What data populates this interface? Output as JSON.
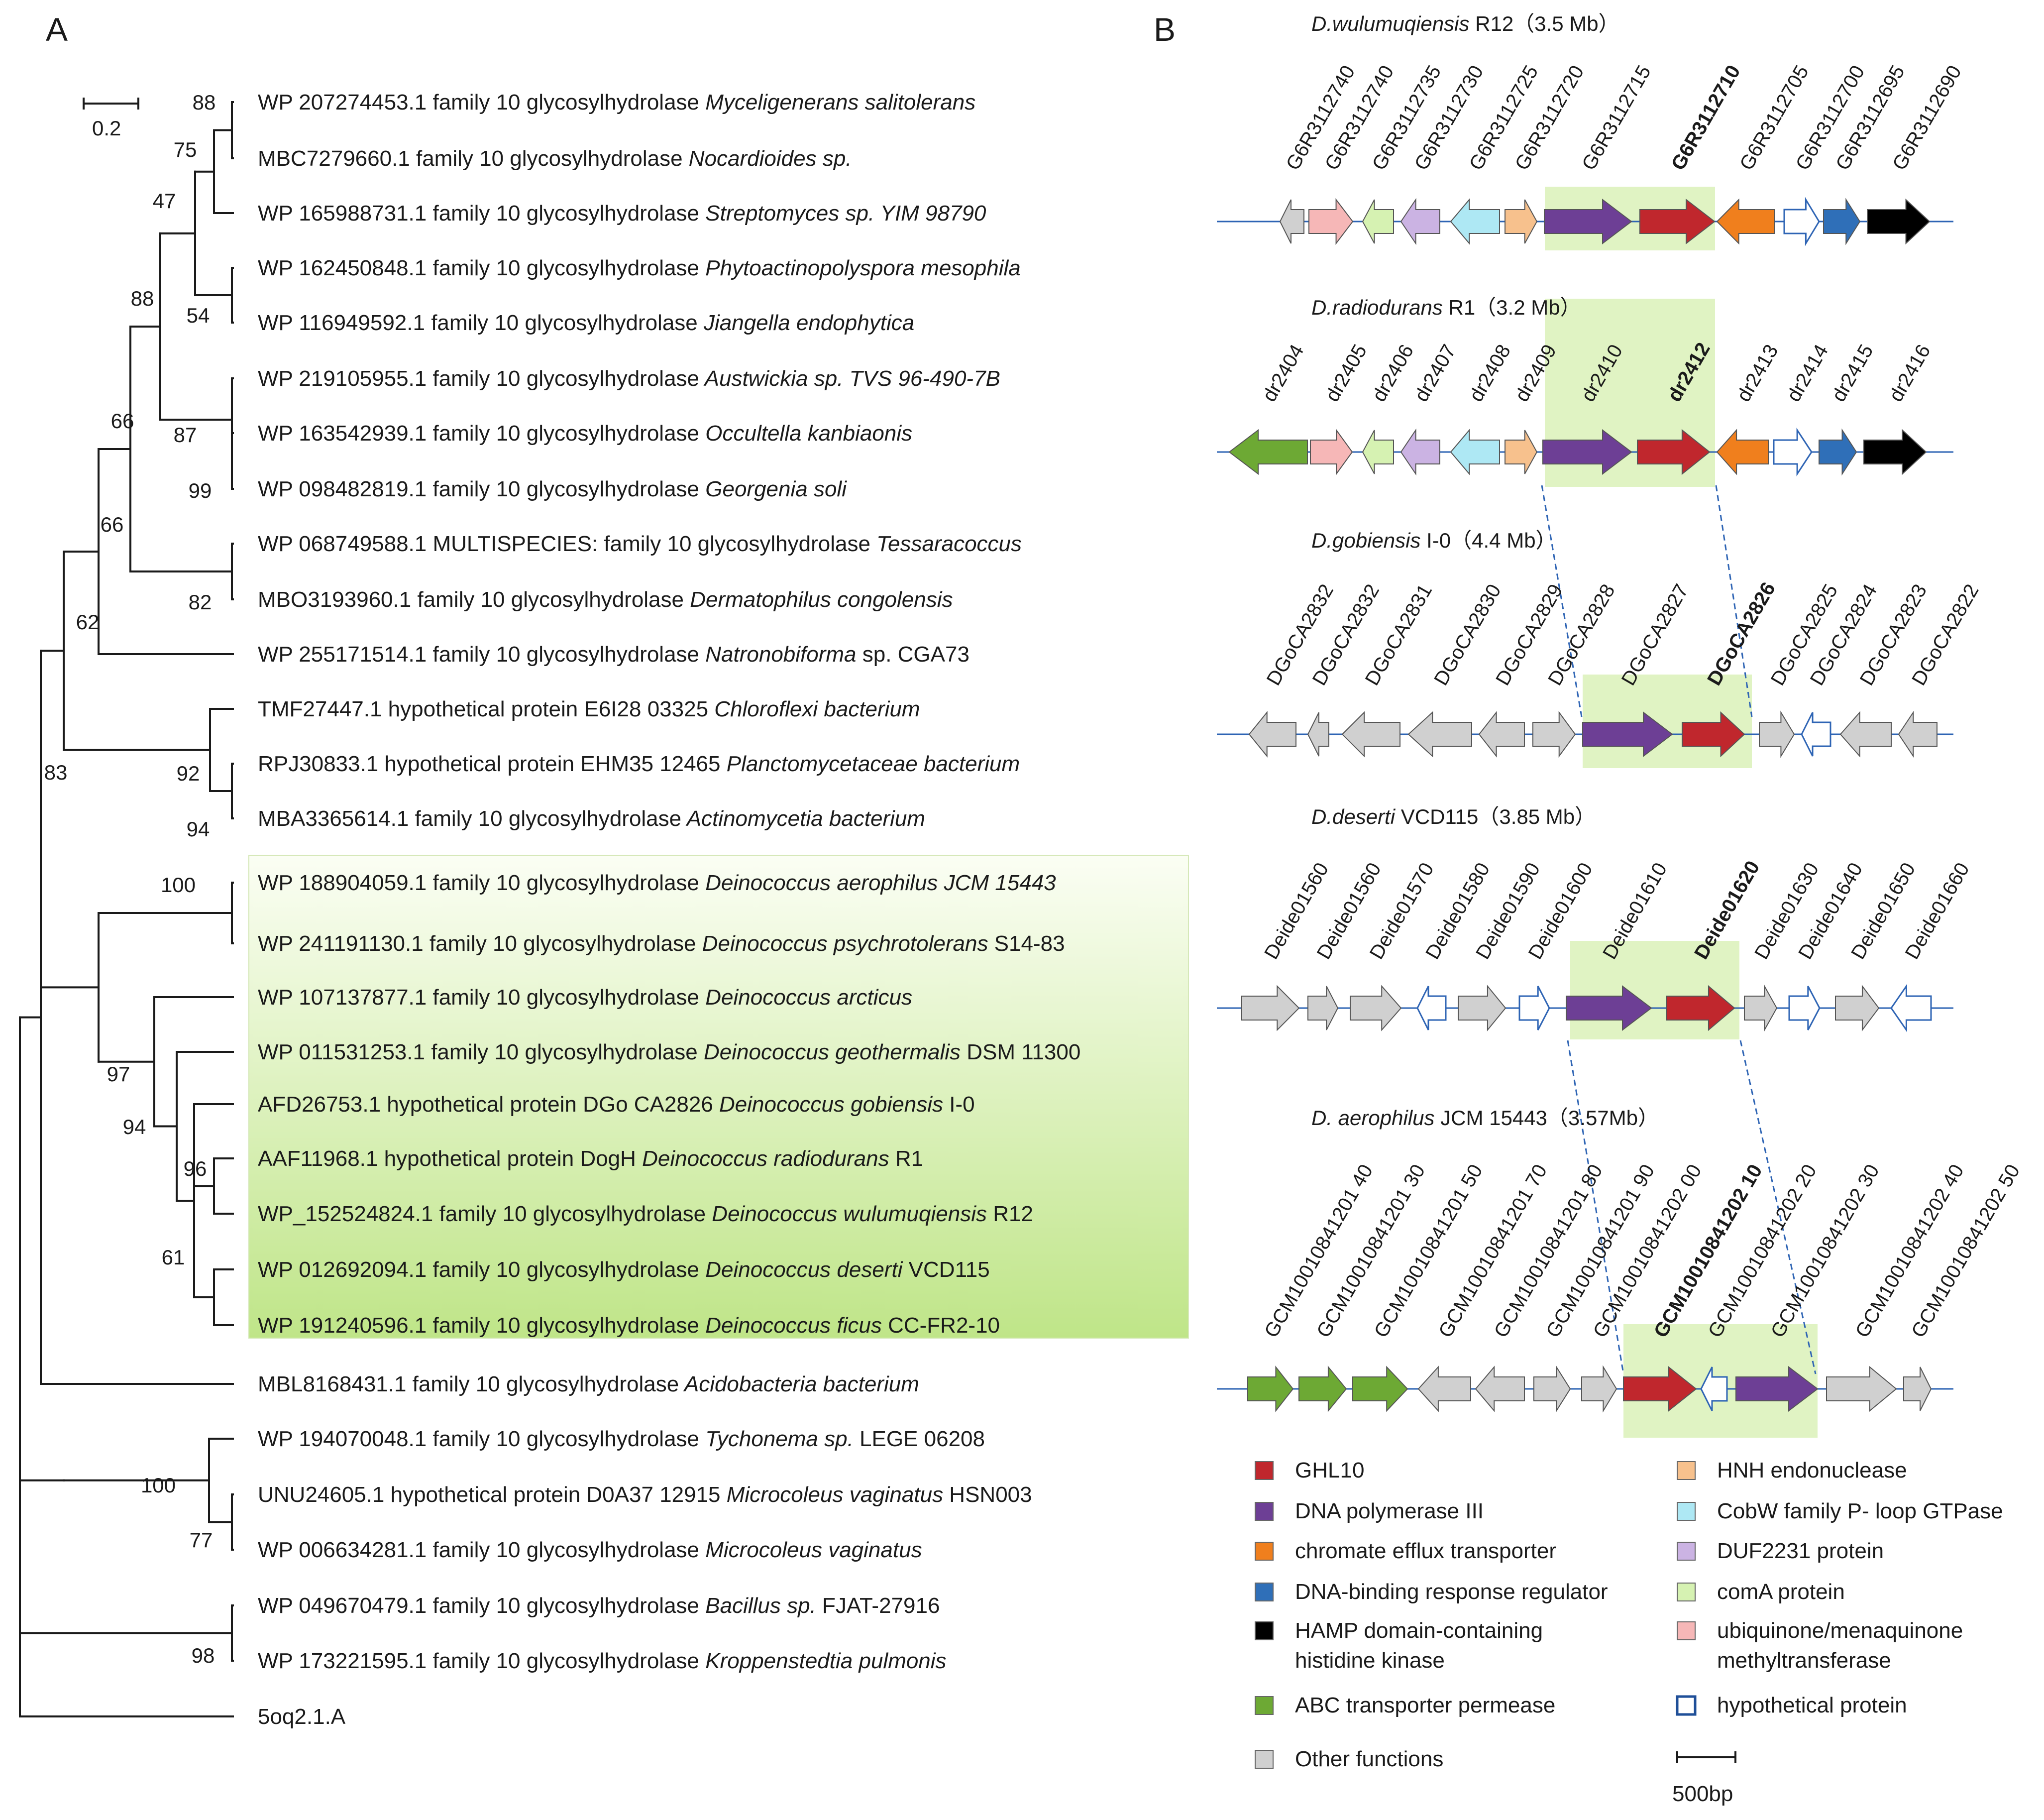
{
  "panel_a": {
    "label": "A",
    "scale_bar": "0.2",
    "leaves": [
      {
        "id": "WP 207274453.1 family 10 glycosylhydrolase",
        "sp": "Myceligenerans salitolerans",
        "tail": ""
      },
      {
        "id": "MBC7279660.1 family 10 glycosylhydrolase",
        "sp": "Nocardioides sp.",
        "tail": ""
      },
      {
        "id": "WP 165988731.1 family 10 glycosylhydrolase",
        "sp": "Streptomyces sp. YIM 98790",
        "tail": ""
      },
      {
        "id": "WP 162450848.1 family 10 glycosylhydrolase",
        "sp": "Phytoactinopolyspora mesophila",
        "tail": ""
      },
      {
        "id": "WP 116949592.1 family 10 glycosylhydrolase",
        "sp": "Jiangella endophytica",
        "tail": ""
      },
      {
        "id": "WP 219105955.1 family 10 glycosylhydrolase",
        "sp": "Austwickia sp. TVS 96-490-7B",
        "tail": ""
      },
      {
        "id": "WP 163542939.1 family 10 glycosylhydrolase",
        "sp": "Occultella kanbiaonis",
        "tail": ""
      },
      {
        "id": "WP 098482819.1 family 10 glycosylhydrolase",
        "sp": "Georgenia soli",
        "tail": ""
      },
      {
        "id": "WP 068749588.1 MULTISPECIES: family 10 glycosylhydrolase",
        "sp": "Tessaracoccus",
        "tail": ""
      },
      {
        "id": "MBO3193960.1 family 10 glycosylhydrolase",
        "sp": "Dermatophilus congolensis",
        "tail": ""
      },
      {
        "id": "WP 255171514.1 family 10 glycosylhydrolase",
        "sp": "Natronobiforma",
        "tail": " sp. CGA73"
      },
      {
        "id": "TMF27447.1 hypothetical protein E6I28 03325",
        "sp": "Chloroflexi bacterium",
        "tail": ""
      },
      {
        "id": "RPJ30833.1 hypothetical protein EHM35 12465",
        "sp": "Planctomycetaceae bacterium",
        "tail": ""
      },
      {
        "id": "MBA3365614.1 family 10 glycosylhydrolase",
        "sp": "Actinomycetia bacterium",
        "tail": ""
      },
      {
        "id": "WP 188904059.1 family 10 glycosylhydrolase",
        "sp": "Deinococcus aerophilus JCM 15443",
        "tail": ""
      },
      {
        "id": "WP 241191130.1 family 10 glycosylhydrolase",
        "sp": "Deinococcus psychrotolerans",
        "tail": " S14-83"
      },
      {
        "id": "WP 107137877.1 family 10 glycosylhydrolase",
        "sp": "Deinococcus arcticus",
        "tail": ""
      },
      {
        "id": "WP 011531253.1 family 10 glycosylhydrolase",
        "sp": "Deinococcus geothermalis",
        "tail": " DSM 11300"
      },
      {
        "id": "AFD26753.1 hypothetical protein DGo CA2826",
        "sp": "Deinococcus gobiensis",
        "tail": " I-0"
      },
      {
        "id": "AAF11968.1 hypothetical protein DogH",
        "sp": "Deinococcus radiodurans",
        "tail": " R1",
        "red": true
      },
      {
        "id": "WP_152524824.1 family 10 glycosylhydrolase",
        "sp": "Deinococcus wulumuqiensis",
        "tail": " R12"
      },
      {
        "id": "WP 012692094.1 family 10 glycosylhydrolase",
        "sp": "Deinococcus deserti",
        "tail": " VCD115"
      },
      {
        "id": "WP 191240596.1 family 10 glycosylhydrolase",
        "sp": "Deinococcus ficus",
        "tail": "  CC-FR2-10"
      },
      {
        "id": "MBL8168431.1 family 10 glycosylhydrolase",
        "sp": "Acidobacteria bacterium",
        "tail": ""
      },
      {
        "id": "WP 194070048.1 family 10 glycosylhydrolase",
        "sp": "Tychonema sp.",
        "tail": " LEGE 06208"
      },
      {
        "id": "UNU24605.1 hypothetical protein D0A37 12915",
        "sp": "Microcoleus vaginatus",
        "tail": " HSN003"
      },
      {
        "id": "WP 006634281.1 family 10 glycosylhydrolase",
        "sp": "Microcoleus vaginatus",
        "tail": ""
      },
      {
        "id": "WP 049670479.1 family 10 glycosylhydrolase",
        "sp": "Bacillus sp.",
        "tail": " FJAT-27916"
      },
      {
        "id": "WP 173221595.1 family 10 glycosylhydrolase",
        "sp": "Kroppenstedtia pulmonis",
        "tail": ""
      },
      {
        "id": "5oq2.1.A",
        "sp": "",
        "tail": "",
        "red": true
      }
    ],
    "bootstrap": [
      "88",
      "75",
      "47",
      "54",
      "88",
      "87",
      "99",
      "66",
      "82",
      "66",
      "92",
      "94",
      "62",
      "100",
      "96",
      "61",
      "94",
      "97",
      "83",
      "100",
      "77",
      "98"
    ]
  },
  "panel_b": {
    "label": "B",
    "genomes": [
      {
        "title_italic": "D.wulumuqiensis",
        "title_rest": " R12（3.5 Mb）",
        "genes": [
          "G6R3112740",
          "G6R3112740",
          "G6R3112735",
          "G6R3112730",
          "G6R3112725",
          "G6R3112720",
          "G6R3112715",
          "G6R3112710",
          "G6R3112705",
          "G6R3112700",
          "G6R3112695",
          "G6R3112690"
        ]
      },
      {
        "title_italic": "D.radiodurans",
        "title_rest": " R1（3.2 Mb）",
        "genes": [
          "dr2404",
          "dr2405",
          "dr2406",
          "dr2407",
          "dr2408",
          "dr2409",
          "dr2410",
          "dr2412",
          "dr2413",
          "dr2414",
          "dr2415",
          "dr2416"
        ]
      },
      {
        "title_italic": "D.gobiensis",
        "title_rest": " I-0（4.4 Mb）",
        "genes": [
          "DGoCA2832",
          "DGoCA2832",
          "DGoCA2831",
          "DGoCA2830",
          "DGoCA2829",
          "DGoCA2828",
          "DGoCA2827",
          "DGoCA2826",
          "DGoCA2825",
          "DGoCA2824",
          "DGoCA2823",
          "DGoCA2822"
        ]
      },
      {
        "title_italic": "D.deserti",
        "title_rest": " VCD115（3.85 Mb）",
        "genes": [
          "Deide01560",
          "Deide01560",
          "Deide01570",
          "Deide01580",
          "Deide01590",
          "Deide01600",
          "Deide01610",
          "Deide01620",
          "Deide01630",
          "Deide01640",
          "Deide01650",
          "Deide01660"
        ]
      },
      {
        "title_italic": "D. aerophilus",
        "title_rest": " JCM 15443（3.57Mb）",
        "genes": [
          "GCM10010841201 40",
          "GCM10010841201 30",
          "GCM10010841201 50",
          "GCM10010841201 70",
          "GCM10010841201 80",
          "GCM10010841201 90",
          "GCM10010841202 00",
          "GCM10010841202 10",
          "GCM10010841202 20",
          "GCM10010841202 30",
          "GCM10010841202 40",
          "GCM10010841202 50"
        ]
      }
    ],
    "legend": [
      {
        "label": "GHL10",
        "color": "#c0272d"
      },
      {
        "label": "HNH endonuclease",
        "color": "#f7c18d"
      },
      {
        "label": "DNA polymerase III",
        "color": "#6d3f95"
      },
      {
        "label": " CobW family P- loop GTPase",
        "color": "#aee8f4"
      },
      {
        "label": "chromate efflux transporter",
        "color": "#f07f1d"
      },
      {
        "label": "DUF2231  protein",
        "color": "#cbb3e3"
      },
      {
        "label": "DNA-binding response regulator",
        "color": "#2f6fb8"
      },
      {
        "label": "comA protein",
        "color": "#d6f2b2"
      },
      {
        "label": "HAMP domain-containing",
        "label2": "histidine kinase",
        "color": "#000000"
      },
      {
        "label": "ubiquinone/menaquinone",
        "label2": "methyltransferase",
        "color": "#f6b7b7"
      },
      {
        "label": "ABC transporter permease",
        "color": "#6da934"
      },
      {
        "label": "hypothetical protein",
        "color": "#ffffff"
      },
      {
        "label": "Other functions",
        "color": "#d0d0d0"
      }
    ],
    "scale_label": "500bp"
  },
  "colors": {
    "highlight": "#e4f4c4",
    "red": "#e3262b",
    "line": "#2e64b4"
  }
}
